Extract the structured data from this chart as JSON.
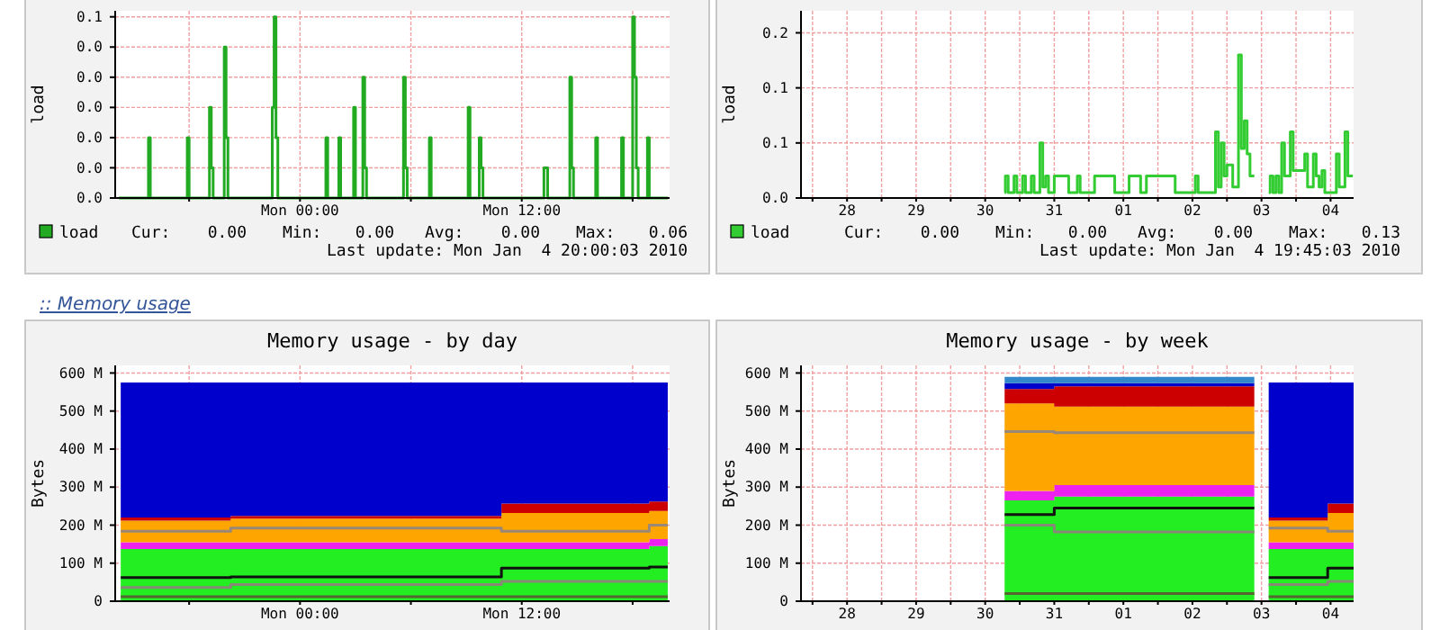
{
  "chart_data": [
    {
      "type": "step",
      "ylabel": "load",
      "xlim": [
        "2010-01-03T14:00",
        "2010-01-04T20:00"
      ],
      "xticks": [
        {
          "value": "2010-01-03T18:00",
          "label": null
        },
        {
          "value": "2010-01-04T00:00",
          "label": "Mon 00:00"
        },
        {
          "value": "2010-01-04T06:00",
          "label": null
        },
        {
          "value": "2010-01-04T12:00",
          "label": "Mon 12:00"
        },
        {
          "value": "2010-01-04T18:00",
          "label": null
        }
      ],
      "ylim": [
        0,
        0.062
      ],
      "yticks": [
        {
          "value": 0,
          "label": "0.0"
        },
        {
          "value": 0.01,
          "label": "0.0"
        },
        {
          "value": 0.02,
          "label": "0.0"
        },
        {
          "value": 0.03,
          "label": "0.0"
        },
        {
          "value": 0.04,
          "label": "0.0"
        },
        {
          "value": 0.05,
          "label": "0.0"
        },
        {
          "value": 0.06,
          "label": "0.1"
        }
      ],
      "grid": true,
      "legend": "bottom",
      "series": [
        {
          "name": "load",
          "color": "#22aa22",
          "x": [
            "2010-01-03T14:12",
            "2010-01-03T15:48",
            "2010-01-03T15:54",
            "2010-01-03T17:54",
            "2010-01-03T18:00",
            "2010-01-03T19:06",
            "2010-01-03T19:12",
            "2010-01-03T19:18",
            "2010-01-03T19:54",
            "2010-01-03T20:00",
            "2010-01-03T20:06",
            "2010-01-03T22:30",
            "2010-01-03T22:36",
            "2010-01-03T22:42",
            "2010-01-03T22:48",
            "2010-01-04T01:24",
            "2010-01-04T01:30",
            "2010-01-04T02:06",
            "2010-01-04T02:12",
            "2010-01-04T02:54",
            "2010-01-04T03:00",
            "2010-01-04T03:24",
            "2010-01-04T03:30",
            "2010-01-04T03:36",
            "2010-01-04T05:36",
            "2010-01-04T05:42",
            "2010-01-04T05:48",
            "2010-01-04T07:00",
            "2010-01-04T07:06",
            "2010-01-04T09:06",
            "2010-01-04T09:12",
            "2010-01-04T09:42",
            "2010-01-04T09:48",
            "2010-01-04T09:54",
            "2010-01-04T13:12",
            "2010-01-04T13:24",
            "2010-01-04T14:36",
            "2010-01-04T14:42",
            "2010-01-04T14:48",
            "2010-01-04T16:00",
            "2010-01-04T16:06",
            "2010-01-04T17:24",
            "2010-01-04T17:30",
            "2010-01-04T18:00",
            "2010-01-04T18:06",
            "2010-01-04T18:12",
            "2010-01-04T18:18",
            "2010-01-04T18:48",
            "2010-01-04T18:54",
            "2010-01-04T19:54"
          ],
          "values": [
            0,
            0.02,
            0,
            0.02,
            0,
            0.03,
            0.01,
            0,
            0.05,
            0.02,
            0,
            0.03,
            0.06,
            0.02,
            0,
            0.02,
            0,
            0.02,
            0,
            0.03,
            0,
            0.04,
            0.01,
            0,
            0.04,
            0.01,
            0,
            0.02,
            0,
            0.03,
            0,
            0.02,
            0.01,
            0,
            0.01,
            0,
            0.04,
            0.01,
            0,
            0.02,
            0,
            0.02,
            0,
            0.06,
            0.04,
            0.01,
            0,
            0.02,
            0,
            0
          ]
        }
      ],
      "annotations": [
        "Cur:",
        "0.00",
        "Min:",
        "0.00",
        "Avg:",
        "0.00",
        "Max:",
        "0.06",
        "Last update: Mon Jan  4 20:00:03 2010"
      ]
    },
    {
      "type": "step",
      "ylabel": "load",
      "xlim": [
        "2009-12-27T20:00",
        "2010-01-04T20:00"
      ],
      "xticks": [
        {
          "value": "2009-12-28T00:00",
          "label": null
        },
        {
          "value": "2009-12-28T12:00",
          "label": "28"
        },
        {
          "value": "2009-12-29T00:00",
          "label": null
        },
        {
          "value": "2009-12-29T12:00",
          "label": "29"
        },
        {
          "value": "2009-12-30T00:00",
          "label": null
        },
        {
          "value": "2009-12-30T12:00",
          "label": "30"
        },
        {
          "value": "2009-12-31T00:00",
          "label": null
        },
        {
          "value": "2009-12-31T12:00",
          "label": "31"
        },
        {
          "value": "2010-01-01T00:00",
          "label": null
        },
        {
          "value": "2010-01-01T12:00",
          "label": "01"
        },
        {
          "value": "2010-01-02T00:00",
          "label": null
        },
        {
          "value": "2010-01-02T12:00",
          "label": "02"
        },
        {
          "value": "2010-01-03T00:00",
          "label": null
        },
        {
          "value": "2010-01-03T12:00",
          "label": "03"
        },
        {
          "value": "2010-01-04T00:00",
          "label": null
        },
        {
          "value": "2010-01-04T12:00",
          "label": "04"
        }
      ],
      "ylim": [
        0,
        0.17
      ],
      "yticks": [
        {
          "value": 0,
          "label": "0.0"
        },
        {
          "value": 0.05,
          "label": "0.1"
        },
        {
          "value": 0.1,
          "label": "0.1"
        },
        {
          "value": 0.15,
          "label": "0.2"
        }
      ],
      "grid": true,
      "legend": "bottom",
      "series": [
        {
          "name": "load",
          "color": "#33cc33",
          "x": [
            "2009-12-30T18:45",
            "2009-12-30T19:00",
            "2009-12-30T20:00",
            "2009-12-30T22:00",
            "2009-12-30T23:00",
            "2009-12-31T01:00",
            "2009-12-31T02:00",
            "2009-12-31T04:00",
            "2009-12-31T05:00",
            "2009-12-31T07:00",
            "2009-12-31T08:00",
            "2009-12-31T09:00",
            "2009-12-31T10:00",
            "2009-12-31T12:00",
            "2009-12-31T17:00",
            "2009-12-31T20:00",
            "2009-12-31T21:00",
            "2010-01-01T02:00",
            "2010-01-01T09:00",
            "2010-01-01T14:00",
            "2010-01-01T18:00",
            "2010-01-01T20:00",
            "2010-01-02T06:00",
            "2010-01-02T13:00",
            "2010-01-02T14:00",
            "2010-01-02T20:00",
            "2010-01-02T21:00",
            "2010-01-02T22:00",
            "2010-01-02T23:00",
            "2010-01-03T00:00",
            "2010-01-03T02:00",
            "2010-01-03T04:00",
            "2010-01-03T05:00",
            "2010-01-03T06:00",
            "2010-01-03T07:00",
            "2010-01-03T08:00",
            "2010-01-03T09:30",
            "2010-01-03T12:00",
            "2010-01-03T14:30",
            "2010-01-03T15:00",
            "2010-01-03T16:00",
            "2010-01-03T17:00",
            "2010-01-03T18:00",
            "2010-01-03T19:00",
            "2010-01-03T20:00",
            "2010-01-03T22:00",
            "2010-01-03T23:00",
            "2010-01-04T03:00",
            "2010-01-04T04:00",
            "2010-01-04T06:00",
            "2010-01-04T07:00",
            "2010-01-04T08:00",
            "2010-01-04T09:00",
            "2010-01-04T10:00",
            "2010-01-04T14:00",
            "2010-01-04T15:00",
            "2010-01-04T17:00",
            "2010-01-04T18:00",
            "2010-01-04T19:45"
          ],
          "values": [
            0.005,
            0.02,
            0.005,
            0.02,
            0.005,
            0.02,
            0.005,
            0.02,
            0.005,
            0.05,
            0.01,
            0.02,
            0.005,
            0.02,
            0.005,
            0.02,
            0.005,
            0.02,
            0.005,
            0.02,
            0.005,
            0.02,
            0.005,
            0.02,
            0.005,
            0.06,
            0.01,
            0.05,
            0.02,
            0.03,
            0.01,
            0.13,
            0.045,
            0.07,
            0.04,
            0.02,
            0.02,
            null,
            0.005,
            0.02,
            0.005,
            0.02,
            0.005,
            0.05,
            0.02,
            0.06,
            0.025,
            0.04,
            0.01,
            0.04,
            0.02,
            0.01,
            0.025,
            0.005,
            0.04,
            0.01,
            0.06,
            0.02,
            0.02
          ]
        }
      ],
      "annotations": [
        "Cur:",
        "0.00",
        "Min:",
        "0.00",
        "Avg:",
        "0.00",
        "Max:",
        "0.13",
        "Last update: Mon Jan  4 19:45:03 2010"
      ]
    },
    {
      "type": "area",
      "stacked": true,
      "title": "Memory usage - by day",
      "ylabel": "Bytes",
      "xlim": [
        "2010-01-03T14:00",
        "2010-01-04T20:00"
      ],
      "xticks": [
        {
          "value": "2010-01-03T18:00",
          "label": null
        },
        {
          "value": "2010-01-04T00:00",
          "label": "Mon 00:00"
        },
        {
          "value": "2010-01-04T06:00",
          "label": null
        },
        {
          "value": "2010-01-04T12:00",
          "label": "Mon 12:00"
        },
        {
          "value": "2010-01-04T18:00",
          "label": null
        }
      ],
      "ylim": [
        0,
        620
      ],
      "yticks": [
        0,
        {
          "value": 100,
          "label": "100 M"
        },
        {
          "value": 200,
          "label": "200 M"
        },
        {
          "value": 300,
          "label": "300 M"
        },
        {
          "value": 400,
          "label": "400 M"
        },
        {
          "value": 500,
          "label": "500 M"
        },
        {
          "value": 600,
          "label": "600 M"
        }
      ],
      "grid": true,
      "x": [
        "2010-01-03T14:18",
        "2010-01-03T20:15",
        "2010-01-04T10:54",
        "2010-01-04T18:54",
        "2010-01-04T19:54"
      ],
      "series": [
        {
          "color": "#22ee22",
          "values": [
            137,
            137,
            137,
            145,
            145
          ]
        },
        {
          "color": "#ee22ee",
          "values": [
            18,
            18,
            18,
            18,
            18
          ]
        },
        {
          "color": "#ffa500",
          "values": [
            57,
            62,
            77,
            74,
            74
          ]
        },
        {
          "color": "#cc0000",
          "values": [
            8,
            7,
            25,
            25,
            25
          ]
        },
        {
          "color": "#0000cc",
          "values": [
            355,
            351,
            318,
            313,
            313
          ]
        },
        {
          "type": "step",
          "color": "#111111",
          "values": [
            62,
            64,
            87,
            90,
            90
          ]
        },
        {
          "type": "step",
          "color": "#888877",
          "values": [
            36,
            44,
            52,
            52,
            52
          ]
        },
        {
          "type": "step",
          "color": "#998877",
          "values": [
            184,
            192,
            184,
            200,
            200
          ]
        },
        {
          "type": "step",
          "color": "#556633",
          "values": [
            12,
            12,
            12,
            12,
            12
          ]
        }
      ],
      "annotations": [
        ":: Memory usage"
      ]
    },
    {
      "type": "area",
      "stacked": true,
      "title": "Memory usage - by week",
      "ylabel": "Bytes",
      "xlim": [
        "2009-12-27T20:00",
        "2010-01-04T20:00"
      ],
      "xticks": [
        {
          "value": "2009-12-28T00:00",
          "label": null
        },
        {
          "value": "2009-12-28T12:00",
          "label": "28"
        },
        {
          "value": "2009-12-29T00:00",
          "label": null
        },
        {
          "value": "2009-12-29T12:00",
          "label": "29"
        },
        {
          "value": "2009-12-30T00:00",
          "label": null
        },
        {
          "value": "2009-12-30T12:00",
          "label": "30"
        },
        {
          "value": "2009-12-31T00:00",
          "label": null
        },
        {
          "value": "2009-12-31T12:00",
          "label": "31"
        },
        {
          "value": "2010-01-01T00:00",
          "label": null
        },
        {
          "value": "2010-01-01T12:00",
          "label": "01"
        },
        {
          "value": "2010-01-02T00:00",
          "label": null
        },
        {
          "value": "2010-01-02T12:00",
          "label": "02"
        },
        {
          "value": "2010-01-03T00:00",
          "label": null
        },
        {
          "value": "2010-01-03T12:00",
          "label": "03"
        },
        {
          "value": "2010-01-04T00:00",
          "label": null
        },
        {
          "value": "2010-01-04T12:00",
          "label": "04"
        }
      ],
      "ylim": [
        0,
        620
      ],
      "yticks": [
        0,
        {
          "value": 100,
          "label": "100 M"
        },
        {
          "value": 200,
          "label": "200 M"
        },
        {
          "value": 300,
          "label": "300 M"
        },
        {
          "value": 400,
          "label": "400 M"
        },
        {
          "value": 500,
          "label": "500 M"
        },
        {
          "value": 600,
          "label": "600 M"
        }
      ],
      "grid": true,
      "x": [
        "2009-12-30T18:45",
        "2009-12-31T12:00",
        "2010-01-03T09:30",
        "2010-01-03T12:00",
        "2010-01-03T14:30",
        "2010-01-04T11:00",
        "2010-01-04T20:00"
      ],
      "series": [
        {
          "color": "#22ee22",
          "values": [
            265,
            275,
            275,
            null,
            137,
            137,
            137
          ]
        },
        {
          "color": "#ee22ee",
          "values": [
            25,
            30,
            30,
            null,
            18,
            18,
            18
          ]
        },
        {
          "color": "#ffa500",
          "values": [
            230,
            207,
            207,
            null,
            57,
            77,
            77
          ]
        },
        {
          "color": "#cc0000",
          "values": [
            38,
            53,
            53,
            null,
            8,
            25,
            25
          ]
        },
        {
          "color": "#0000cc",
          "values": [
            15,
            8,
            8,
            null,
            355,
            318,
            318
          ]
        },
        {
          "color": "#3388cc",
          "values": [
            17,
            17,
            17,
            null,
            null,
            null,
            null
          ]
        },
        {
          "type": "step",
          "color": "#111111",
          "values": [
            228,
            245,
            245,
            null,
            62,
            87,
            87
          ]
        },
        {
          "type": "step",
          "color": "#888877",
          "values": [
            200,
            182,
            182,
            null,
            44,
            52,
            52
          ]
        },
        {
          "type": "step",
          "color": "#998877",
          "values": [
            446,
            443,
            443,
            null,
            192,
            184,
            184
          ]
        },
        {
          "type": "step",
          "color": "#556633",
          "values": [
            20,
            20,
            20,
            null,
            12,
            12,
            12
          ]
        }
      ]
    }
  ]
}
